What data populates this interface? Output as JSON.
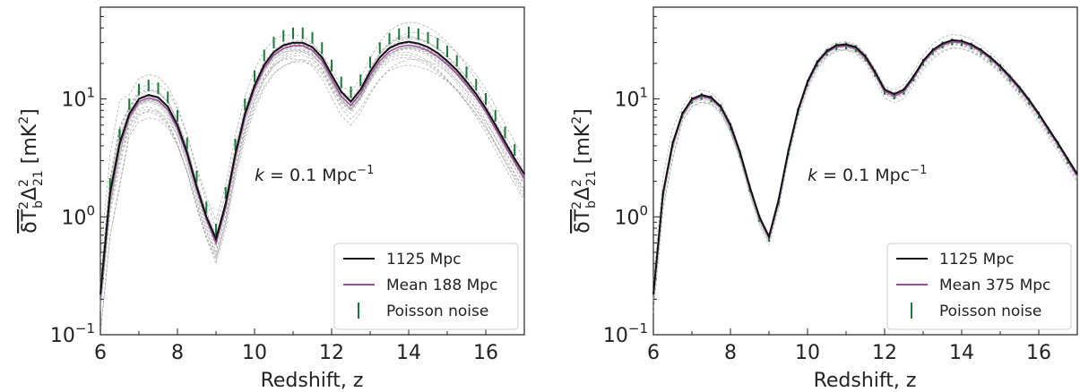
{
  "chart_data": [
    {
      "type": "line",
      "xlabel": "Redshift, z",
      "ylabel": "δT_b²Δ_21² [mK²]",
      "ylabel_parts": {
        "main": "δT",
        "sub1": "b",
        "sup1": "2",
        "delta": "Δ",
        "sub2": "21",
        "sup2": "2",
        "unit": "[mK",
        "unit_sup": "2",
        "unit_close": "]"
      },
      "xlim": [
        6,
        17
      ],
      "ylim": [
        0.1,
        60
      ],
      "yscale": "log",
      "x_ticks": [
        6,
        8,
        10,
        12,
        14,
        16
      ],
      "x_tick_labels": [
        "6",
        "8",
        "10",
        "12",
        "14",
        "16"
      ],
      "y_ticks": [
        0.1,
        1,
        10
      ],
      "y_tick_labels": [
        {
          "base": "10",
          "exp": "−1"
        },
        {
          "base": "10",
          "exp": "0"
        },
        {
          "base": "10",
          "exp": "1"
        }
      ],
      "annotation": {
        "text": "k = 0.1 Mpc⁻¹",
        "k": "k",
        "mid": " = 0.1 Mpc",
        "sup": "−1"
      },
      "legend_position": "lower-right",
      "legend": [
        {
          "label": "1125 Mpc",
          "color": "#111111",
          "kind": "line"
        },
        {
          "label": "Mean 188 Mpc",
          "color": "#9b4f9b",
          "kind": "line"
        },
        {
          "label": "Poisson noise",
          "color": "#1a7a3a",
          "kind": "errorbar"
        }
      ],
      "series": [
        {
          "name": "1125 Mpc",
          "color": "#111111",
          "x": [
            6.0,
            6.25,
            6.5,
            6.75,
            7.0,
            7.25,
            7.5,
            7.75,
            8.0,
            8.25,
            8.5,
            8.75,
            9.0,
            9.25,
            9.5,
            9.75,
            10.0,
            10.25,
            10.5,
            10.75,
            11.0,
            11.25,
            11.5,
            11.75,
            12.0,
            12.25,
            12.5,
            12.75,
            13.0,
            13.25,
            13.5,
            13.75,
            14.0,
            14.25,
            14.5,
            14.75,
            15.0,
            15.25,
            15.5,
            15.75,
            16.0,
            16.25,
            16.5,
            16.75,
            17.0
          ],
          "y": [
            0.22,
            1.6,
            4.2,
            7.5,
            10.0,
            10.8,
            10.3,
            8.6,
            6.0,
            3.5,
            1.8,
            1.0,
            0.65,
            1.3,
            3.4,
            7.5,
            13.0,
            19.5,
            25.0,
            28.5,
            30.0,
            30.0,
            27.5,
            22.5,
            16.0,
            11.5,
            9.5,
            12.0,
            17.0,
            22.5,
            27.0,
            29.5,
            30.5,
            29.5,
            27.5,
            24.5,
            21.0,
            17.5,
            14.0,
            11.0,
            8.3,
            6.0,
            4.3,
            3.1,
            2.3
          ]
        },
        {
          "name": "Mean 188 Mpc",
          "color": "#9b4f9b",
          "x": [
            6.0,
            6.25,
            6.5,
            6.75,
            7.0,
            7.25,
            7.5,
            7.75,
            8.0,
            8.25,
            8.5,
            8.75,
            9.0,
            9.25,
            9.5,
            9.75,
            10.0,
            10.25,
            10.5,
            10.75,
            11.0,
            11.25,
            11.5,
            11.75,
            12.0,
            12.25,
            12.5,
            12.75,
            13.0,
            13.25,
            13.5,
            13.75,
            14.0,
            14.25,
            14.5,
            14.75,
            15.0,
            15.25,
            15.5,
            15.75,
            16.0,
            16.25,
            16.5,
            16.75,
            17.0
          ],
          "y": [
            0.21,
            1.5,
            4.0,
            7.1,
            9.5,
            10.2,
            9.7,
            8.1,
            5.6,
            3.3,
            1.7,
            0.95,
            0.6,
            1.2,
            3.2,
            7.0,
            12.2,
            18.3,
            23.5,
            26.8,
            28.2,
            28.2,
            25.8,
            21.0,
            14.8,
            10.5,
            8.8,
            11.2,
            15.9,
            21.0,
            25.3,
            27.6,
            28.6,
            27.6,
            25.7,
            22.9,
            19.6,
            16.3,
            13.1,
            10.3,
            7.8,
            5.6,
            4.0,
            2.9,
            2.1
          ]
        }
      ],
      "errorbars": {
        "x": [
          6.0,
          6.25,
          6.5,
          6.75,
          7.0,
          7.25,
          7.5,
          7.75,
          8.0,
          8.25,
          8.5,
          8.75,
          9.0,
          9.25,
          9.5,
          9.75,
          10.0,
          10.25,
          10.5,
          10.75,
          11.0,
          11.25,
          11.5,
          11.75,
          12.0,
          12.25,
          12.5,
          12.75,
          13.0,
          13.25,
          13.5,
          13.75,
          14.0,
          14.25,
          14.5,
          14.75,
          15.0,
          15.25,
          15.5,
          15.75,
          16.0,
          16.25,
          16.5,
          16.75,
          17.0
        ],
        "y": [
          0.25,
          1.9,
          5.0,
          9.0,
          12.0,
          13.0,
          12.3,
          10.3,
          7.2,
          4.2,
          2.2,
          1.2,
          0.78,
          1.6,
          4.1,
          9.0,
          15.6,
          23.4,
          30.0,
          34.2,
          36.0,
          36.0,
          33.0,
          27.0,
          19.2,
          13.8,
          11.4,
          14.4,
          20.4,
          27.0,
          32.4,
          35.4,
          36.6,
          35.4,
          33.0,
          29.4,
          25.2,
          21.0,
          16.8,
          13.2,
          10.0,
          7.2,
          5.2,
          3.7,
          2.8
        ],
        "rel_half_height": 0.12
      },
      "realizations_count": 20,
      "realizations_color": "#999999",
      "realizations_spread": 0.22
    },
    {
      "type": "line",
      "xlabel": "Redshift, z",
      "ylabel": "δT_b²Δ_21² [mK²]",
      "ylabel_parts": {
        "main": "δT",
        "sub1": "b",
        "sup1": "2",
        "delta": "Δ",
        "sub2": "21",
        "sup2": "2",
        "unit": "[mK",
        "unit_sup": "2",
        "unit_close": "]"
      },
      "xlim": [
        6,
        17
      ],
      "ylim": [
        0.1,
        60
      ],
      "yscale": "log",
      "x_ticks": [
        6,
        8,
        10,
        12,
        14,
        16
      ],
      "x_tick_labels": [
        "6",
        "8",
        "10",
        "12",
        "14",
        "16"
      ],
      "y_ticks": [
        0.1,
        1,
        10
      ],
      "y_tick_labels": [
        {
          "base": "10",
          "exp": "−1"
        },
        {
          "base": "10",
          "exp": "0"
        },
        {
          "base": "10",
          "exp": "1"
        }
      ],
      "annotation": {
        "text": "k = 0.1 Mpc⁻¹",
        "k": "k",
        "mid": " = 0.1 Mpc",
        "sup": "−1"
      },
      "legend_position": "lower-right",
      "legend": [
        {
          "label": "1125 Mpc",
          "color": "#111111",
          "kind": "line"
        },
        {
          "label": "Mean 375 Mpc",
          "color": "#9b4f9b",
          "kind": "line"
        },
        {
          "label": "Poisson noise",
          "color": "#1a7a3a",
          "kind": "errorbar"
        }
      ],
      "series": [
        {
          "name": "1125 Mpc",
          "color": "#111111",
          "x": [
            6.0,
            6.25,
            6.5,
            6.75,
            7.0,
            7.25,
            7.5,
            7.75,
            8.0,
            8.25,
            8.5,
            8.75,
            9.0,
            9.25,
            9.5,
            9.75,
            10.0,
            10.25,
            10.5,
            10.75,
            11.0,
            11.25,
            11.5,
            11.75,
            12.0,
            12.25,
            12.5,
            12.75,
            13.0,
            13.25,
            13.5,
            13.75,
            14.0,
            14.25,
            14.5,
            14.75,
            15.0,
            15.25,
            15.5,
            15.75,
            16.0,
            16.25,
            16.5,
            16.75,
            17.0
          ],
          "y": [
            0.22,
            1.6,
            4.2,
            7.5,
            10.0,
            10.8,
            10.3,
            8.6,
            6.0,
            3.5,
            1.8,
            1.0,
            0.68,
            1.4,
            3.6,
            8.0,
            14.0,
            20.5,
            25.5,
            28.5,
            29.0,
            27.5,
            23.0,
            17.0,
            12.0,
            11.0,
            12.0,
            15.5,
            21.0,
            26.0,
            29.5,
            31.5,
            31.0,
            29.0,
            26.0,
            22.5,
            19.0,
            15.5,
            12.5,
            9.8,
            7.5,
            5.6,
            4.2,
            3.1,
            2.3
          ]
        },
        {
          "name": "Mean 375 Mpc",
          "color": "#9b4f9b",
          "x": [
            6.0,
            6.25,
            6.5,
            6.75,
            7.0,
            7.25,
            7.5,
            7.75,
            8.0,
            8.25,
            8.5,
            8.75,
            9.0,
            9.25,
            9.5,
            9.75,
            10.0,
            10.25,
            10.5,
            10.75,
            11.0,
            11.25,
            11.5,
            11.75,
            12.0,
            12.25,
            12.5,
            12.75,
            13.0,
            13.25,
            13.5,
            13.75,
            14.0,
            14.25,
            14.5,
            14.75,
            15.0,
            15.25,
            15.5,
            15.75,
            16.0,
            16.25,
            16.5,
            16.75,
            17.0
          ],
          "y": [
            0.21,
            1.55,
            4.1,
            7.3,
            9.7,
            10.5,
            10.0,
            8.4,
            5.8,
            3.4,
            1.75,
            0.97,
            0.66,
            1.35,
            3.5,
            7.8,
            13.6,
            19.9,
            24.8,
            27.7,
            28.2,
            26.7,
            22.3,
            16.5,
            11.6,
            10.6,
            11.6,
            15.0,
            20.4,
            25.2,
            28.6,
            30.5,
            30.0,
            28.1,
            25.2,
            21.8,
            18.4,
            15.0,
            12.1,
            9.5,
            7.3,
            5.4,
            4.1,
            3.0,
            2.2
          ]
        }
      ],
      "errorbars": {
        "x": [
          6.0,
          6.25,
          6.5,
          6.75,
          7.0,
          7.25,
          7.5,
          7.75,
          8.0,
          8.25,
          8.5,
          8.75,
          9.0,
          9.25,
          9.5,
          9.75,
          10.0,
          10.25,
          10.5,
          10.75,
          11.0,
          11.25,
          11.5,
          11.75,
          12.0,
          12.25,
          12.5,
          12.75,
          13.0,
          13.25,
          13.5,
          13.75,
          14.0,
          14.25,
          14.5,
          14.75,
          15.0,
          15.25,
          15.5,
          15.75,
          16.0,
          16.25,
          16.5,
          16.75,
          17.0
        ],
        "y": [
          0.21,
          1.55,
          4.1,
          7.3,
          9.7,
          10.5,
          10.0,
          8.4,
          5.8,
          3.4,
          1.75,
          0.97,
          0.66,
          1.35,
          3.5,
          7.8,
          13.6,
          19.9,
          24.8,
          27.7,
          28.2,
          26.7,
          22.3,
          16.5,
          11.6,
          10.6,
          11.6,
          15.0,
          20.4,
          25.2,
          28.6,
          30.5,
          30.0,
          28.1,
          25.2,
          21.8,
          18.4,
          15.0,
          12.1,
          9.5,
          7.3,
          5.4,
          4.1,
          3.0,
          2.2
        ],
        "rel_half_height": 0.07
      },
      "realizations_count": 12,
      "realizations_color": "#999999",
      "realizations_spread": 0.07
    }
  ]
}
